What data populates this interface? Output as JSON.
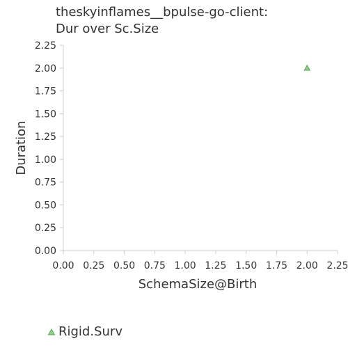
{
  "chart_data": {
    "type": "scatter",
    "title_lines": [
      "theskyinflames__bpulse-go-client:",
      "Dur over Sc.Size"
    ],
    "xlabel": "SchemaSize@Birth",
    "ylabel": "Duration",
    "xlim": [
      0,
      2.25
    ],
    "ylim": [
      0,
      2.25
    ],
    "x_ticks": [
      "0.00",
      "0.25",
      "0.50",
      "0.75",
      "1.00",
      "1.25",
      "1.50",
      "1.75",
      "2.00",
      "2.25"
    ],
    "y_ticks": [
      "0.00",
      "0.25",
      "0.50",
      "0.75",
      "1.00",
      "1.25",
      "1.50",
      "1.75",
      "2.00",
      "2.25"
    ],
    "grid": false,
    "legend_position": "bottom-left",
    "series": [
      {
        "name": "Rigid.Surv",
        "marker": "triangle",
        "color": "#8fd18a",
        "stroke": "#5aa856",
        "points": [
          {
            "x": 2.0,
            "y": 2.0
          }
        ]
      }
    ]
  }
}
